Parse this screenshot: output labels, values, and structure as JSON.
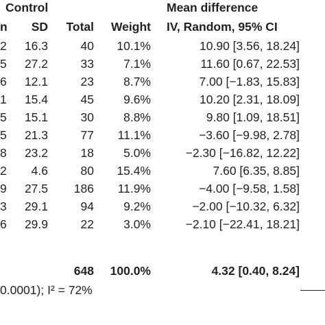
{
  "header": {
    "group_label": "Control",
    "effect_label": "Mean difference",
    "columns": {
      "n": "n",
      "sd": "SD",
      "total": "Total",
      "weight": "Weight",
      "method": "IV, Random, 95% CI"
    }
  },
  "rows": [
    {
      "n": "2",
      "sd": "16.3",
      "total": "40",
      "weight": "10.1%",
      "ci": "10.90 [3.56, 18.24]"
    },
    {
      "n": "5",
      "sd": "27.2",
      "total": "33",
      "weight": "7.1%",
      "ci": "11.60 [0.67, 22.53]"
    },
    {
      "n": "6",
      "sd": "12.1",
      "total": "23",
      "weight": "8.7%",
      "ci": "7.00 [−1.83, 15.83]"
    },
    {
      "n": "1",
      "sd": "15.4",
      "total": "45",
      "weight": "9.6%",
      "ci": "10.20 [2.31, 18.09]"
    },
    {
      "n": "5",
      "sd": "15.1",
      "total": "30",
      "weight": "8.8%",
      "ci": "9.80 [1.09, 18.51]"
    },
    {
      "n": "5",
      "sd": "21.3",
      "total": "77",
      "weight": "11.1%",
      "ci": "−3.60 [−9.98, 2.78]"
    },
    {
      "n": "8",
      "sd": "23.2",
      "total": "18",
      "weight": "5.0%",
      "ci": "−2.30 [−16.82, 12.22]"
    },
    {
      "n": "2",
      "sd": "4.6",
      "total": "80",
      "weight": "15.4%",
      "ci": "7.60 [6.35, 8.85]"
    },
    {
      "n": "9",
      "sd": "27.5",
      "total": "186",
      "weight": "11.9%",
      "ci": "−4.00 [−9.58, 1.58]"
    },
    {
      "n": "3",
      "sd": "29.1",
      "total": "94",
      "weight": "9.2%",
      "ci": "−2.00 [−10.32, 6.32]"
    },
    {
      "n": "6",
      "sd": "29.9",
      "total": "22",
      "weight": "3.0%",
      "ci": "−2.10 [−22.41, 18.21]"
    }
  ],
  "total": {
    "total": "648",
    "weight": "100.0%",
    "ci": "4.32 [0.40, 8.24]"
  },
  "heterogeneity": "0.0001); I² = 72%"
}
